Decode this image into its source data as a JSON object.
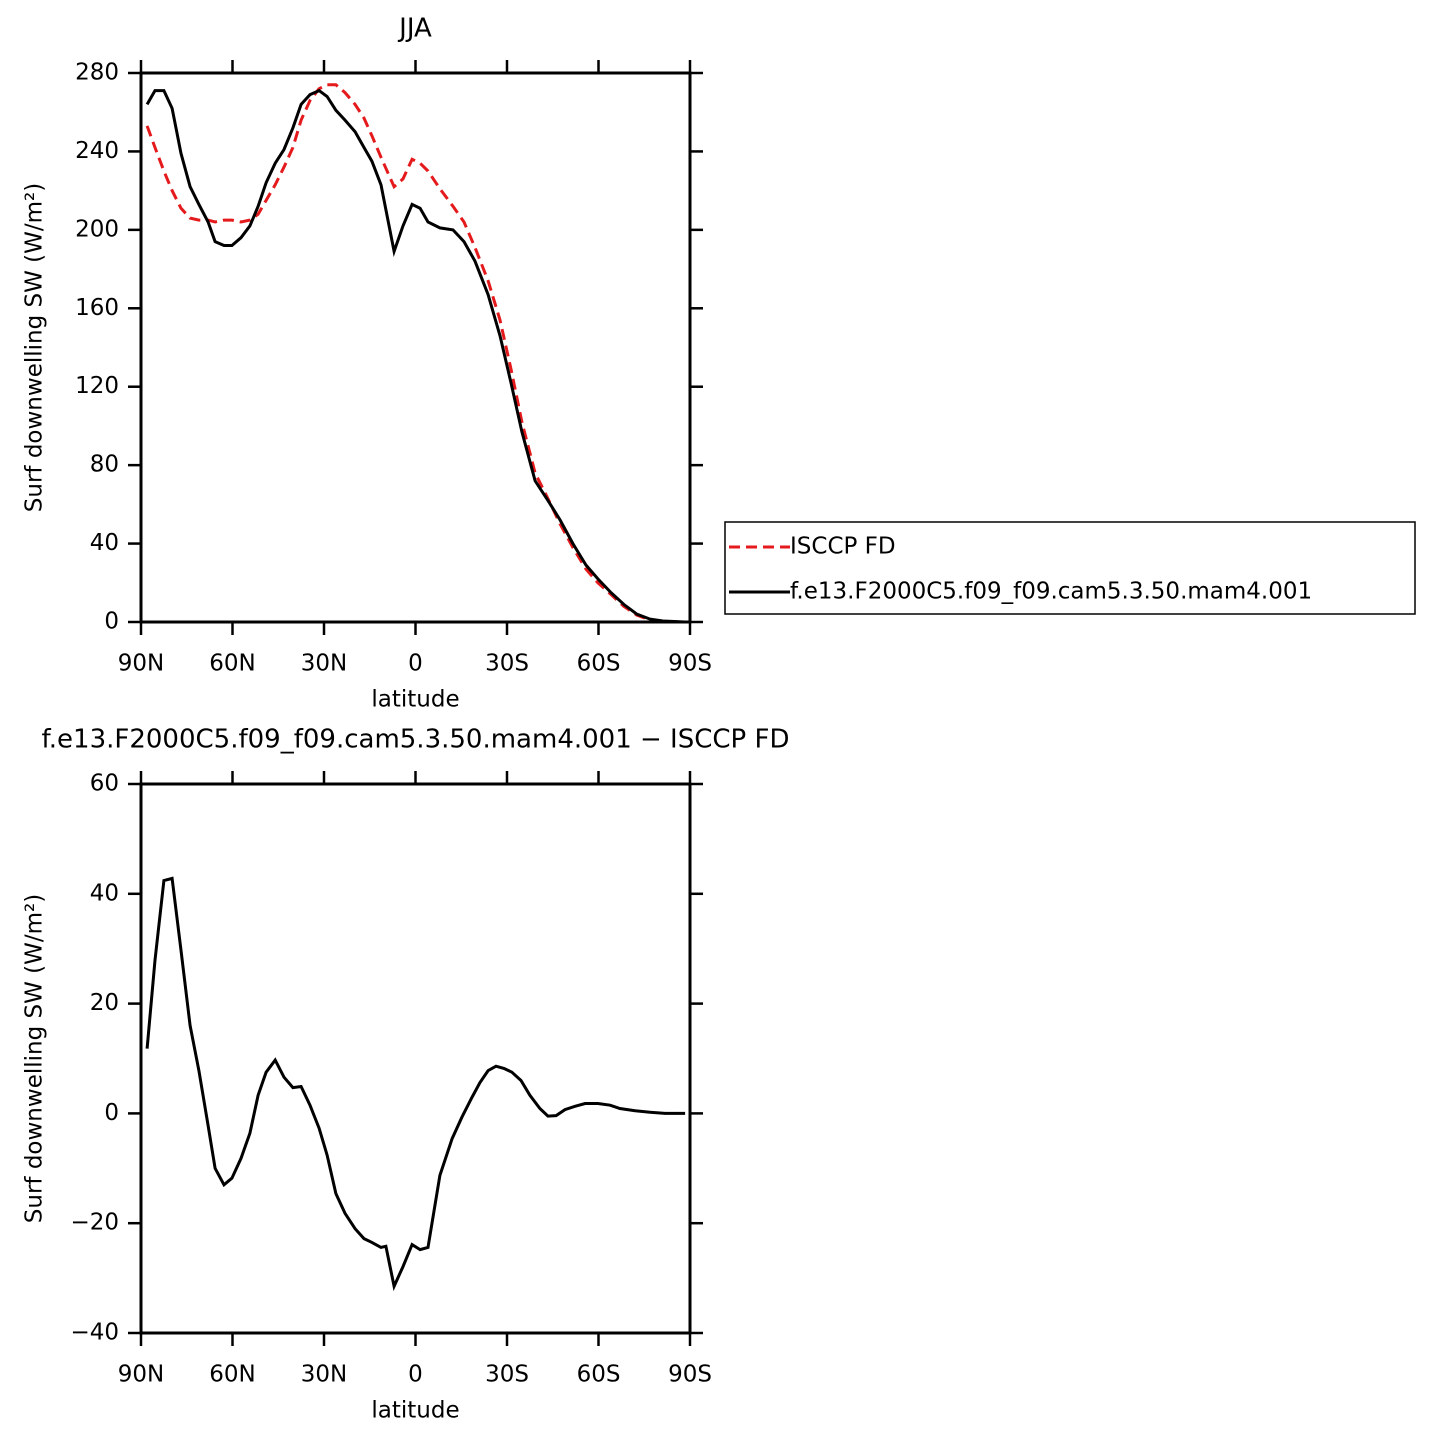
{
  "chart_data": [
    {
      "type": "line",
      "title": "JJA",
      "xlabel": "latitude",
      "ylabel": "Surf downwelling SW (W/m²)",
      "x": [
        88.0,
        85.4,
        82.5,
        79.8,
        76.9,
        73.9,
        71.0,
        68.0,
        65.7,
        62.8,
        60.2,
        57.2,
        54.3,
        51.6,
        49.0,
        46.0,
        43.1,
        40.2,
        37.5,
        34.6,
        31.6,
        29.0,
        26.1,
        23.1,
        19.8,
        16.9,
        14.3,
        11.3,
        7.0,
        4.1,
        1.1,
        -1.5,
        -4.1,
        -8.0,
        -12.3,
        -15.9,
        -19.5,
        -23.8,
        -27.7,
        -31.3,
        -34.9,
        -39.2,
        -43.4,
        -47.4,
        -51.6,
        -55.9,
        -59.8,
        -64.1,
        -68.3,
        -72.6,
        -76.9,
        -81.1,
        -88.4
      ],
      "series": [
        {
          "name": "ISCCP FD",
          "color": "#e41a1c",
          "dashed": true,
          "values": [
            253,
            242,
            230,
            220,
            211,
            206,
            205,
            205,
            204,
            205,
            205,
            204,
            205,
            208,
            215,
            223,
            232,
            242,
            256,
            266,
            272,
            274,
            274,
            270,
            264,
            257,
            248,
            237,
            222,
            226,
            236,
            234,
            230,
            221,
            212,
            204,
            191,
            174,
            154,
            129,
            102,
            76,
            63,
            50,
            38,
            27,
            20,
            14,
            8,
            3.5,
            1,
            0.3,
            0
          ]
        },
        {
          "name": "f.e13.F2000C5.f09_f09.cam5.3.50.mam4.001",
          "color": "#000000",
          "dashed": false,
          "values": [
            264,
            271,
            271,
            262,
            239,
            222,
            213,
            204,
            194,
            192,
            192,
            196,
            202,
            212,
            224,
            234,
            241,
            252,
            264,
            269,
            271,
            268,
            261,
            256,
            250,
            242,
            235,
            223,
            189,
            202,
            213,
            211,
            204,
            201,
            200,
            194,
            184,
            167,
            146,
            122,
            97,
            72,
            62,
            52,
            40,
            29,
            22,
            15,
            9,
            4,
            1.5,
            0.5,
            0
          ]
        }
      ],
      "xlim": [
        90,
        -90
      ],
      "xticks": [
        {
          "value": 90,
          "label": "90N"
        },
        {
          "value": 60,
          "label": "60N"
        },
        {
          "value": 30,
          "label": "30N"
        },
        0,
        {
          "value": -30,
          "label": "30S"
        },
        {
          "value": -60,
          "label": "60S"
        },
        {
          "value": -90,
          "label": "90S"
        }
      ],
      "ylim": [
        0,
        280
      ],
      "yticks": [
        0,
        40,
        80,
        120,
        160,
        200,
        240,
        280
      ],
      "legend": "right"
    },
    {
      "type": "line",
      "title": "f.e13.F2000C5.f09_f09.cam5.3.50.mam4.001 − ISCCP FD",
      "xlabel": "latitude",
      "ylabel": "Surf downwelling SW (W/m²)",
      "x": [
        88.0,
        85.4,
        82.5,
        79.8,
        76.9,
        73.9,
        71.0,
        68.0,
        65.7,
        62.8,
        60.2,
        57.2,
        54.3,
        51.6,
        49.0,
        46.0,
        43.1,
        40.2,
        37.5,
        34.6,
        31.6,
        29.0,
        26.1,
        23.1,
        19.8,
        16.9,
        14.3,
        11.3,
        9.7,
        7.0,
        4.1,
        1.1,
        -1.5,
        -4.1,
        -8.0,
        -12.0,
        -15.2,
        -18.5,
        -21.1,
        -23.8,
        -26.4,
        -29.0,
        -31.6,
        -34.6,
        -37.5,
        -40.8,
        -43.4,
        -46.1,
        -49.0,
        -52.3,
        -55.6,
        -59.8,
        -63.8,
        -67.0,
        -72.0,
        -76.9,
        -81.8,
        -88.4
      ],
      "series": [
        {
          "color": "#000000",
          "dashed": false,
          "values": [
            11.8,
            27.9,
            42.4,
            42.8,
            29.7,
            16,
            7.8,
            -2.2,
            -10,
            -13,
            -11.8,
            -8.2,
            -3.6,
            3.3,
            7.5,
            9.7,
            6.6,
            4.7,
            4.9,
            1.5,
            -2.7,
            -7.6,
            -14.6,
            -18.2,
            -21,
            -22.8,
            -23.5,
            -24.4,
            -24.2,
            -31.5,
            -27.9,
            -23.9,
            -24.8,
            -24.4,
            -11.3,
            -4.6,
            -0.7,
            2.9,
            5.6,
            7.8,
            8.6,
            8.2,
            7.5,
            6,
            3.3,
            0.9,
            -0.5,
            -0.4,
            0.7,
            1.3,
            1.8,
            1.8,
            1.5,
            0.9,
            0.5,
            0.2,
            0,
            0
          ]
        }
      ],
      "xlim": [
        90,
        -90
      ],
      "xticks": [
        {
          "value": 90,
          "label": "90N"
        },
        {
          "value": 60,
          "label": "60N"
        },
        {
          "value": 30,
          "label": "30N"
        },
        0,
        {
          "value": -30,
          "label": "30S"
        },
        {
          "value": -60,
          "label": "60S"
        },
        {
          "value": -90,
          "label": "90S"
        }
      ],
      "ylim": [
        -40,
        60
      ],
      "yticks": [
        {
          "value": -40,
          "label": "−40"
        },
        {
          "value": -20,
          "label": "−20"
        },
        0,
        20,
        40,
        60
      ]
    }
  ]
}
